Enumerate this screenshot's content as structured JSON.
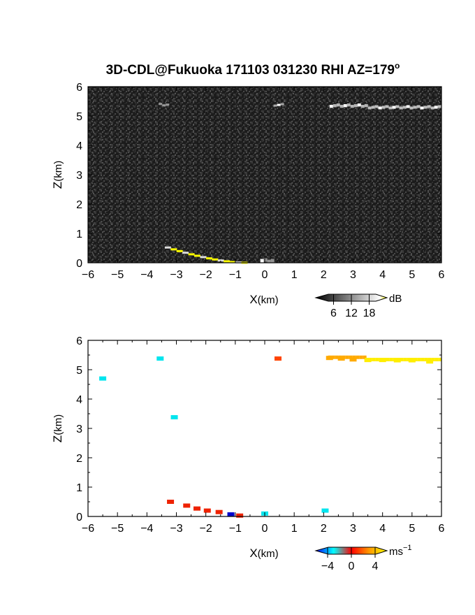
{
  "title": "3D-CDL@Fukuoka 171103 031230 RHI AZ=179",
  "title_degree": "o",
  "chart_data": [
    {
      "type": "heatmap",
      "quantity": "backscatter",
      "xlabel_main": "X",
      "xlabel_unit": "(km)",
      "ylabel_main": "Z",
      "ylabel_unit": "(km)",
      "xlim": [
        -6,
        6
      ],
      "ylim": [
        0,
        6
      ],
      "xticks": [
        "−6",
        "−5",
        "−4",
        "−3",
        "−2",
        "−1",
        "0",
        "1",
        "2",
        "3",
        "4",
        "5",
        "6"
      ],
      "yticks": [
        "0",
        "1",
        "2",
        "3",
        "4",
        "5",
        "6"
      ],
      "background": "noise",
      "features": [
        {
          "x": [
            -3.6,
            -3.3
          ],
          "z": [
            5.35,
            5.42
          ],
          "db": 10
        },
        {
          "x": [
            0.3,
            0.55
          ],
          "z": [
            5.33,
            5.43
          ],
          "db": 12
        },
        {
          "x": [
            2.2,
            3.4
          ],
          "z": [
            5.28,
            5.45
          ],
          "db": 14
        },
        {
          "x": [
            3.5,
            5.95
          ],
          "z": [
            5.22,
            5.38
          ],
          "db": 15
        },
        {
          "x": [
            -3.3,
            -0.7
          ],
          "z": [
            0.0,
            0.52
          ],
          "db": 22,
          "shape": "ground-arc"
        },
        {
          "x": [
            -0.15,
            0.25
          ],
          "z": [
            0.0,
            0.2
          ],
          "db": 9
        }
      ],
      "colorbar": {
        "ticks": [
          "6",
          "12",
          "18"
        ],
        "tick_values": [
          6,
          12,
          18
        ],
        "range": [
          0,
          24
        ],
        "unit": "dB",
        "colors": [
          "#000000",
          "#ffffff",
          "#ffff00"
        ]
      }
    },
    {
      "type": "scatter",
      "quantity": "doppler-velocity",
      "xlabel_main": "X",
      "xlabel_unit": "(km)",
      "ylabel_main": "Z",
      "ylabel_unit": "(km)",
      "xlim": [
        -6,
        6
      ],
      "ylim": [
        0,
        6
      ],
      "xticks": [
        "−6",
        "−5",
        "−4",
        "−3",
        "−2",
        "−1",
        "0",
        "1",
        "2",
        "3",
        "4",
        "5",
        "6"
      ],
      "yticks": [
        "0",
        "1",
        "2",
        "3",
        "4",
        "5",
        "6"
      ],
      "points": [
        {
          "x": -5.5,
          "z": 4.7,
          "v": -3
        },
        {
          "x": -3.55,
          "z": 5.38,
          "v": -4
        },
        {
          "x": -3.07,
          "z": 3.38,
          "v": -3
        },
        {
          "x": 0.45,
          "z": 5.38,
          "v": 2
        },
        {
          "x": -3.2,
          "z": 0.5,
          "v": 1
        },
        {
          "x": -2.65,
          "z": 0.37,
          "v": 1
        },
        {
          "x": -2.3,
          "z": 0.27,
          "v": 1
        },
        {
          "x": -1.95,
          "z": 0.2,
          "v": 1
        },
        {
          "x": -1.55,
          "z": 0.15,
          "v": 1
        },
        {
          "x": -1.15,
          "z": 0.07,
          "v": -5
        },
        {
          "x": -0.85,
          "z": 0.03,
          "v": 1
        },
        {
          "x": 0.0,
          "z": 0.1,
          "v": -3
        },
        {
          "x": 2.05,
          "z": 0.2,
          "v": -3
        },
        {
          "x": 2.2,
          "z": 5.4,
          "v": 3
        },
        {
          "x": 2.6,
          "z": 5.38,
          "v": 3
        },
        {
          "x": 3.0,
          "z": 5.35,
          "v": 3
        },
        {
          "x": 3.5,
          "z": 5.33,
          "v": 4
        },
        {
          "x": 4.0,
          "z": 5.33,
          "v": 4
        },
        {
          "x": 4.5,
          "z": 5.32,
          "v": 4
        },
        {
          "x": 5.0,
          "z": 5.32,
          "v": 4
        },
        {
          "x": 5.6,
          "z": 5.28,
          "v": 4
        }
      ],
      "colorbar": {
        "ticks": [
          "−4",
          "0",
          "4"
        ],
        "tick_values": [
          -4,
          0,
          4
        ],
        "range": [
          -6,
          6
        ],
        "unit_main": "ms",
        "unit_sup": "−1",
        "colors": [
          "#0000ff",
          "#00ffff",
          "#ff0000",
          "#ffff00"
        ]
      }
    }
  ]
}
